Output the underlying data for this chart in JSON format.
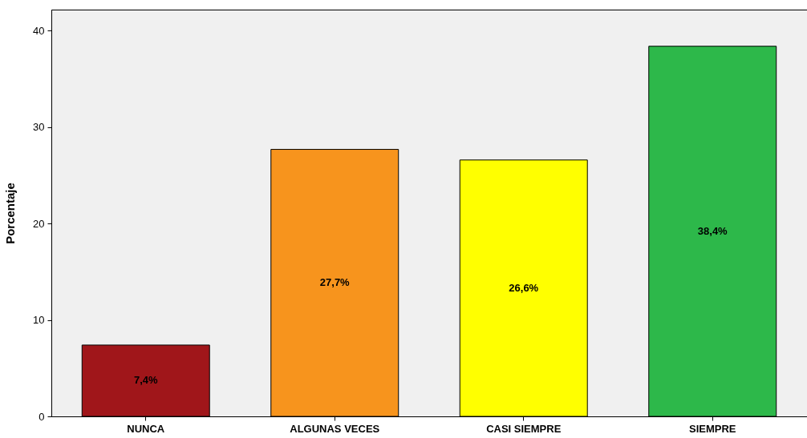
{
  "chart_data": {
    "type": "bar",
    "ylabel": "Porcentaje",
    "categories": [
      "NUNCA",
      "ALGUNAS VECES",
      "CASI SIEMPRE",
      "SIEMPRE"
    ],
    "values": [
      7.4,
      27.7,
      26.6,
      38.4
    ],
    "colors": [
      "#a0161a",
      "#f7941d",
      "#ffff00",
      "#2db84a"
    ],
    "value_labels": [
      "7,4%",
      "27,7%",
      "26,6%",
      "38,4%"
    ],
    "ylim": [
      0,
      42.2
    ],
    "yticks": [
      0,
      10,
      20,
      30,
      40
    ],
    "grid": false,
    "legend": false
  }
}
